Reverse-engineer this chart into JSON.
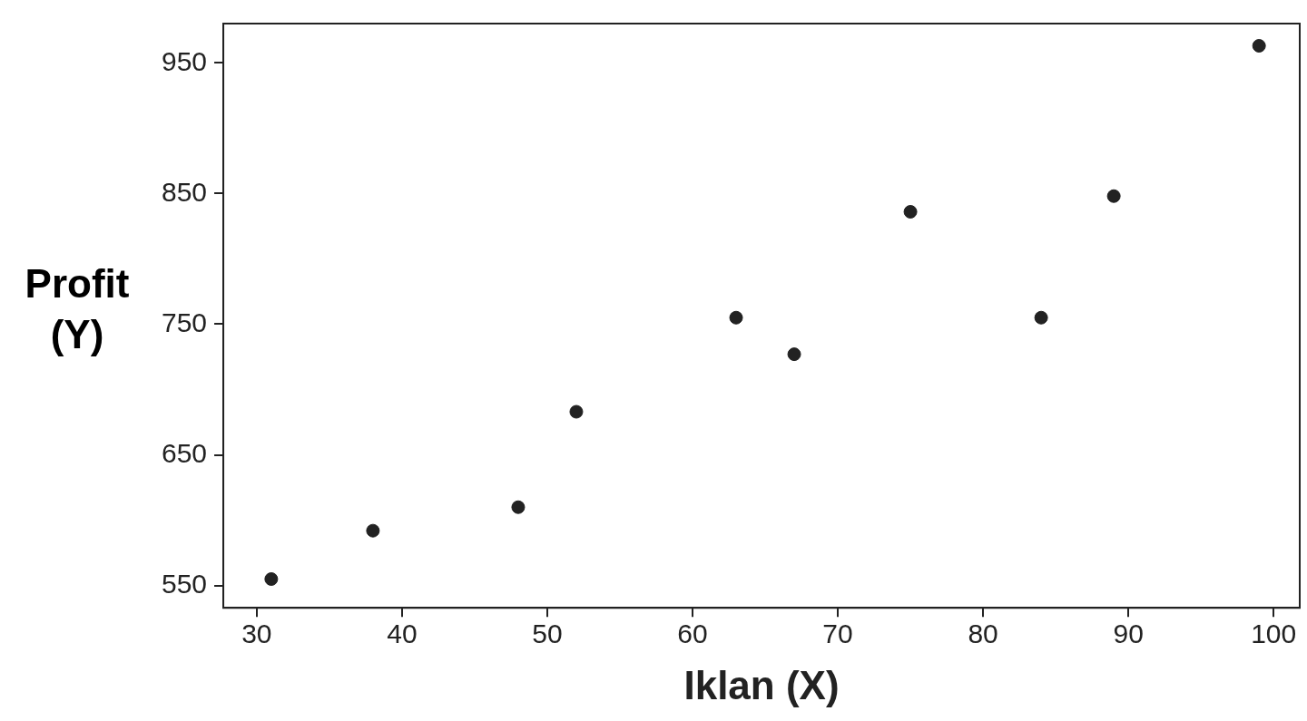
{
  "chart_data": {
    "type": "scatter",
    "xlabel": "Iklan (X)",
    "ylabel": "Profit\n(Y)",
    "x": [
      31,
      38,
      48,
      52,
      63,
      67,
      75,
      84,
      89,
      99
    ],
    "series": [
      {
        "color": "#222222",
        "values": [
          555,
          592,
          610,
          683,
          755,
          727,
          836,
          755,
          848,
          963
        ]
      }
    ],
    "xlim": [
      27.7,
      101.8
    ],
    "ylim": [
      533,
      980
    ],
    "xticks": [
      30,
      40,
      50,
      60,
      70,
      80,
      90,
      100
    ],
    "yticks": [
      550,
      650,
      750,
      850,
      950
    ],
    "marker": "circle"
  }
}
